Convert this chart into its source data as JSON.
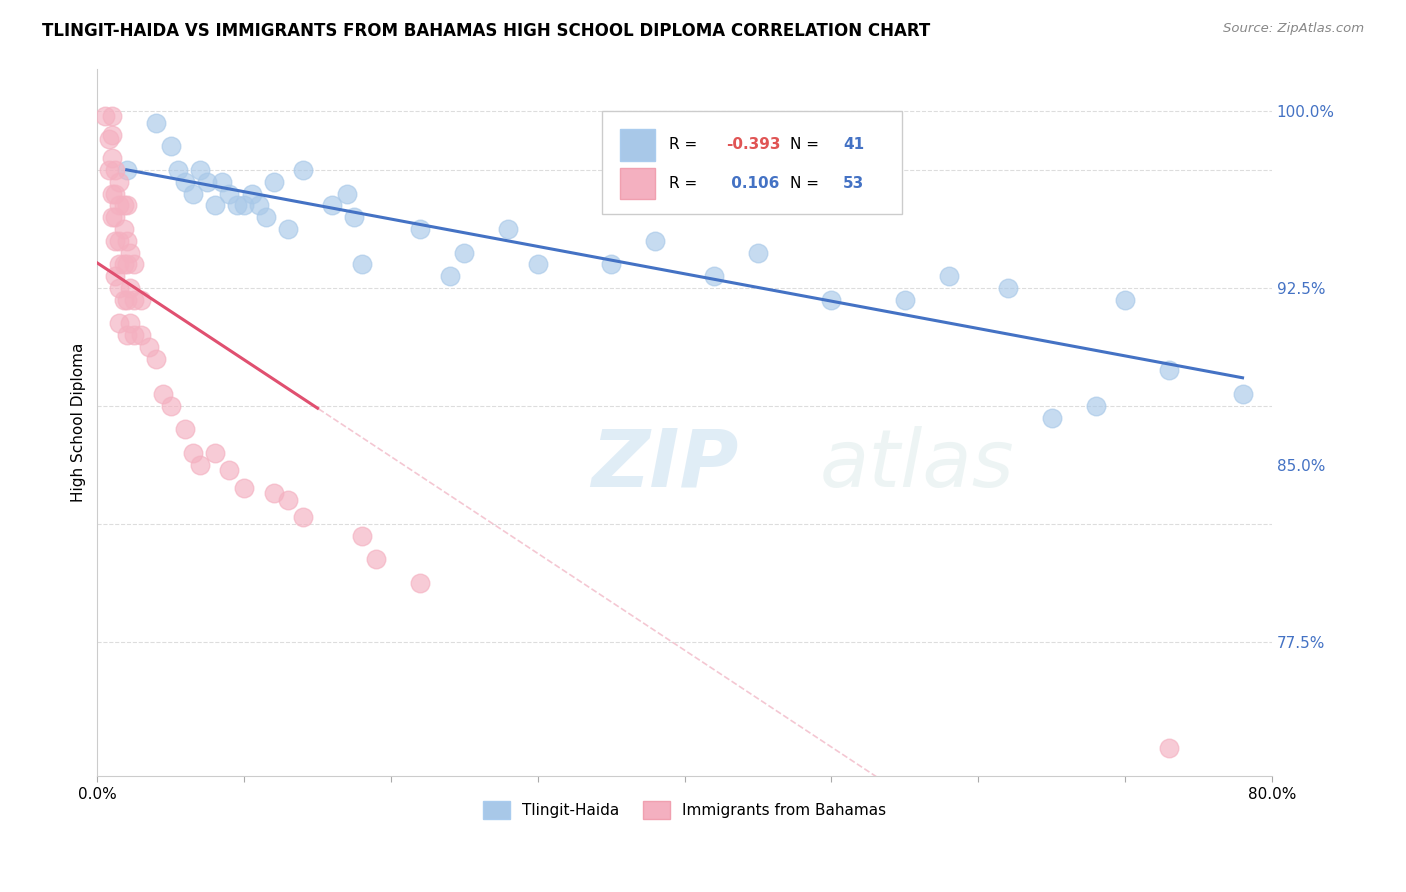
{
  "title": "TLINGIT-HAIDA VS IMMIGRANTS FROM BAHAMAS HIGH SCHOOL DIPLOMA CORRELATION CHART",
  "source_text": "Source: ZipAtlas.com",
  "ylabel": "High School Diploma",
  "watermark": "ZIPatlas",
  "xmin": 0.0,
  "xmax": 0.8,
  "ymin": 0.718,
  "ymax": 1.018,
  "blue_color": "#a8c8e8",
  "pink_color": "#f4b0c0",
  "blue_line_color": "#4472c4",
  "pink_line_color": "#e05070",
  "pink_dash_color": "#f0b0c0",
  "tlingit_x": [
    0.02,
    0.04,
    0.05,
    0.055,
    0.06,
    0.065,
    0.07,
    0.075,
    0.08,
    0.085,
    0.09,
    0.095,
    0.1,
    0.105,
    0.11,
    0.115,
    0.12,
    0.13,
    0.14,
    0.16,
    0.17,
    0.175,
    0.18,
    0.22,
    0.24,
    0.25,
    0.28,
    0.3,
    0.35,
    0.38,
    0.42,
    0.45,
    0.5,
    0.55,
    0.58,
    0.62,
    0.65,
    0.68,
    0.7,
    0.73,
    0.78
  ],
  "tlingit_y": [
    0.975,
    0.995,
    0.985,
    0.975,
    0.97,
    0.965,
    0.975,
    0.97,
    0.96,
    0.97,
    0.965,
    0.96,
    0.96,
    0.965,
    0.96,
    0.955,
    0.97,
    0.95,
    0.975,
    0.96,
    0.965,
    0.955,
    0.935,
    0.95,
    0.93,
    0.94,
    0.95,
    0.935,
    0.935,
    0.945,
    0.93,
    0.94,
    0.92,
    0.92,
    0.93,
    0.925,
    0.87,
    0.875,
    0.92,
    0.89,
    0.88
  ],
  "bahamas_x": [
    0.005,
    0.008,
    0.008,
    0.01,
    0.01,
    0.01,
    0.01,
    0.01,
    0.012,
    0.012,
    0.012,
    0.012,
    0.012,
    0.015,
    0.015,
    0.015,
    0.015,
    0.015,
    0.015,
    0.018,
    0.018,
    0.018,
    0.018,
    0.02,
    0.02,
    0.02,
    0.02,
    0.02,
    0.022,
    0.022,
    0.022,
    0.025,
    0.025,
    0.025,
    0.03,
    0.03,
    0.035,
    0.04,
    0.045,
    0.05,
    0.06,
    0.065,
    0.07,
    0.08,
    0.09,
    0.1,
    0.12,
    0.13,
    0.14,
    0.18,
    0.19,
    0.22,
    0.73
  ],
  "bahamas_y": [
    0.998,
    0.988,
    0.975,
    0.998,
    0.99,
    0.98,
    0.965,
    0.955,
    0.975,
    0.965,
    0.955,
    0.945,
    0.93,
    0.97,
    0.96,
    0.945,
    0.935,
    0.925,
    0.91,
    0.96,
    0.95,
    0.935,
    0.92,
    0.96,
    0.945,
    0.935,
    0.92,
    0.905,
    0.94,
    0.925,
    0.91,
    0.935,
    0.92,
    0.905,
    0.92,
    0.905,
    0.9,
    0.895,
    0.88,
    0.875,
    0.865,
    0.855,
    0.85,
    0.855,
    0.848,
    0.84,
    0.838,
    0.835,
    0.828,
    0.82,
    0.81,
    0.8,
    0.73
  ]
}
